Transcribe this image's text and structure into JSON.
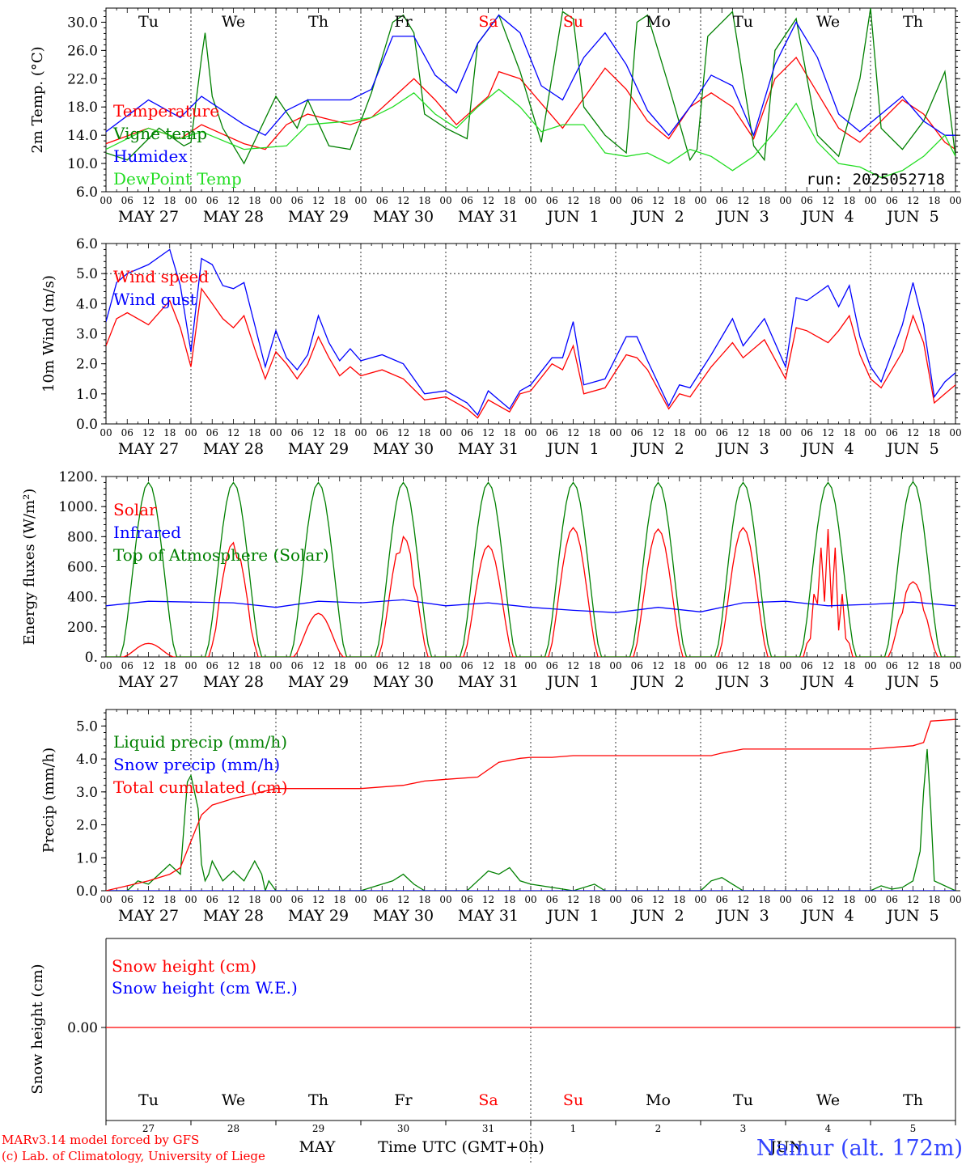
{
  "footer": {
    "model_line": "MARv3.14 model forced by GFS",
    "copyright_line": "(c) Lab. of Climatology, University of Liege",
    "month_label": "MAY",
    "time_axis_label": "Time UTC (GMT+0h)",
    "station": "Namur (alt. 172m)",
    "overlap_label": "JUN"
  },
  "colors": {
    "red": "#ff0000",
    "blue": "#0000ff",
    "green": "#008000",
    "lightgreen": "#22dd22",
    "black": "#000000"
  },
  "chart_data": [
    {
      "type": "line",
      "id": "temperature",
      "ylabel": "2m Temp. (°C)",
      "ylim": [
        6,
        32
      ],
      "yticks": [
        "6.0",
        "10.0",
        "14.0",
        "18.0",
        "22.0",
        "26.0",
        "30.0"
      ],
      "grid": "dashed vertical at 00 UTC",
      "day_names": [
        "Tu",
        "We",
        "Th",
        "Fr",
        "Sa",
        "Su",
        "Mo",
        "Tu",
        "We",
        "Th"
      ],
      "weekend_days": [
        4,
        5
      ],
      "hour_labels": [
        "00",
        "06",
        "12",
        "18"
      ],
      "date_labels": [
        "MAY 27",
        "MAY 28",
        "MAY 29",
        "MAY 30",
        "MAY 31",
        "JUN  1",
        "JUN  2",
        "JUN  3",
        "JUN  4",
        "JUN  5"
      ],
      "annotation": "run: 2025052718",
      "series": [
        {
          "name": "Temperature",
          "color": "#ff0000",
          "x": [
            0,
            12,
            21,
            27,
            39,
            45,
            51,
            57,
            69,
            75,
            87,
            93,
            99,
            108,
            111,
            117,
            123,
            129,
            141,
            147,
            153,
            159,
            165,
            171,
            177,
            183,
            189,
            195,
            201,
            207,
            213,
            219,
            225,
            231,
            237,
            240
          ],
          "y": [
            12.8,
            15.0,
            13.5,
            15.5,
            12.8,
            12.0,
            15.5,
            17.0,
            15.5,
            16.5,
            22.0,
            19.0,
            15.5,
            19.5,
            23.0,
            22.0,
            18.5,
            15.0,
            23.5,
            20.5,
            16.0,
            13.5,
            18.0,
            20.0,
            18.0,
            13.5,
            22.0,
            25.0,
            20.0,
            15.0,
            13.0,
            16.0,
            19.0,
            17.0,
            13.0,
            12.0
          ]
        },
        {
          "name": "Vigne temp",
          "color": "#008000",
          "x": [
            0,
            6,
            15,
            22,
            24,
            27,
            28,
            30,
            33,
            39,
            48,
            54,
            57,
            63,
            69,
            75,
            81,
            84,
            87,
            90,
            96,
            102,
            105,
            111,
            117,
            123,
            129,
            132,
            135,
            141,
            147,
            150,
            153,
            159,
            165,
            167,
            170,
            177,
            183,
            186,
            189,
            195,
            201,
            207,
            213,
            216,
            219,
            225,
            231,
            237,
            240
          ],
          "y": [
            11.5,
            10.5,
            15.0,
            12.5,
            13.0,
            25.0,
            28.5,
            19.5,
            15.0,
            10.0,
            19.5,
            15.0,
            19.0,
            12.5,
            12.0,
            20.0,
            30.0,
            31.0,
            28.5,
            17.0,
            15.0,
            13.5,
            27.0,
            31.0,
            23.0,
            13.0,
            31.5,
            30.5,
            18.0,
            14.0,
            11.5,
            30.0,
            31.0,
            21.0,
            10.5,
            12.0,
            28.0,
            31.5,
            12.5,
            10.5,
            26.0,
            30.5,
            14.0,
            11.0,
            22.0,
            32.0,
            15.0,
            12.0,
            16.0,
            23.0,
            11.0
          ]
        },
        {
          "name": "Humidex",
          "color": "#0000ff",
          "x": [
            0,
            12,
            21,
            27,
            39,
            45,
            51,
            57,
            69,
            75,
            81,
            87,
            93,
            99,
            105,
            111,
            117,
            123,
            129,
            135,
            141,
            147,
            153,
            159,
            165,
            171,
            177,
            183,
            189,
            195,
            201,
            207,
            213,
            219,
            225,
            231,
            237,
            240
          ],
          "y": [
            14.5,
            19.0,
            16.5,
            19.5,
            15.5,
            14.0,
            17.5,
            19.0,
            19.0,
            20.5,
            28.0,
            28.0,
            22.5,
            20.0,
            27.0,
            31.0,
            28.5,
            21.0,
            19.0,
            25.0,
            28.5,
            24.0,
            17.5,
            14.0,
            18.0,
            22.5,
            21.0,
            14.0,
            24.0,
            30.0,
            25.0,
            17.0,
            14.5,
            17.0,
            19.5,
            16.0,
            14.0,
            14.0
          ]
        },
        {
          "name": "DewPoint Temp",
          "color": "#22dd22",
          "x": [
            0,
            12,
            21,
            27,
            39,
            51,
            57,
            69,
            75,
            81,
            87,
            93,
            99,
            105,
            111,
            117,
            123,
            129,
            135,
            141,
            147,
            153,
            159,
            165,
            171,
            177,
            183,
            189,
            195,
            201,
            207,
            213,
            219,
            225,
            231,
            237,
            240
          ],
          "y": [
            12.0,
            15.0,
            13.5,
            14.5,
            12.0,
            12.5,
            15.5,
            16.0,
            16.5,
            18.0,
            20.0,
            17.0,
            15.0,
            18.0,
            20.5,
            18.0,
            14.5,
            15.5,
            15.5,
            11.5,
            11.0,
            11.5,
            10.0,
            12.0,
            11.0,
            9.0,
            11.0,
            14.5,
            18.5,
            13.0,
            10.0,
            9.5,
            8.0,
            9.0,
            11.0,
            14.0,
            11.0
          ]
        }
      ]
    },
    {
      "type": "line",
      "id": "wind",
      "ylabel": "10m Wind (m/s)",
      "ylim": [
        0,
        6
      ],
      "yticks": [
        "0.0",
        "1.0",
        "2.0",
        "3.0",
        "4.0",
        "5.0",
        "6.0"
      ],
      "reference_line": 5.0,
      "hour_labels": [
        "00",
        "06",
        "12",
        "18"
      ],
      "date_labels": [
        "MAY 27",
        "MAY 28",
        "MAY 29",
        "MAY 30",
        "MAY 31",
        "JUN  1",
        "JUN  2",
        "JUN  3",
        "JUN  4",
        "JUN  5"
      ],
      "series": [
        {
          "name": "Wind speed",
          "color": "#ff0000",
          "x": [
            0,
            3,
            6,
            12,
            18,
            21,
            24,
            27,
            30,
            33,
            36,
            39,
            42,
            45,
            48,
            51,
            54,
            57,
            60,
            63,
            66,
            69,
            72,
            78,
            84,
            90,
            96,
            102,
            105,
            108,
            111,
            114,
            117,
            120,
            126,
            129,
            132,
            135,
            141,
            147,
            150,
            153,
            159,
            162,
            165,
            171,
            177,
            180,
            186,
            192,
            195,
            198,
            204,
            207,
            210,
            213,
            216,
            219,
            225,
            228,
            231,
            234,
            237,
            240
          ],
          "y": [
            2.6,
            3.5,
            3.7,
            3.3,
            4.1,
            3.2,
            1.9,
            4.5,
            4.0,
            3.5,
            3.2,
            3.6,
            2.5,
            1.5,
            2.4,
            2.0,
            1.5,
            2.0,
            2.9,
            2.2,
            1.6,
            1.9,
            1.6,
            1.8,
            1.5,
            0.8,
            0.9,
            0.5,
            0.2,
            0.8,
            0.6,
            0.4,
            1.0,
            1.1,
            2.0,
            1.8,
            2.6,
            1.0,
            1.2,
            2.3,
            2.2,
            1.8,
            0.5,
            1.0,
            0.9,
            1.9,
            2.7,
            2.2,
            2.8,
            1.5,
            3.2,
            3.1,
            2.7,
            3.1,
            3.6,
            2.3,
            1.5,
            1.2,
            2.4,
            3.6,
            2.7,
            0.7,
            1.0,
            1.3
          ]
        },
        {
          "name": "Wind gust",
          "color": "#0000ff",
          "x": [
            0,
            3,
            6,
            12,
            18,
            21,
            24,
            27,
            30,
            33,
            36,
            39,
            42,
            45,
            48,
            51,
            54,
            57,
            60,
            63,
            66,
            69,
            72,
            78,
            84,
            90,
            96,
            102,
            105,
            108,
            111,
            114,
            117,
            120,
            126,
            129,
            132,
            135,
            141,
            147,
            150,
            153,
            159,
            162,
            165,
            171,
            177,
            180,
            186,
            192,
            195,
            198,
            204,
            207,
            210,
            213,
            216,
            219,
            225,
            228,
            231,
            234,
            237,
            240
          ],
          "y": [
            3.4,
            4.7,
            5.0,
            5.3,
            5.8,
            4.6,
            2.4,
            5.5,
            5.3,
            4.6,
            4.5,
            4.7,
            3.3,
            1.9,
            3.1,
            2.2,
            1.8,
            2.3,
            3.6,
            2.7,
            2.1,
            2.5,
            2.1,
            2.3,
            2.0,
            1.0,
            1.1,
            0.7,
            0.3,
            1.1,
            0.8,
            0.5,
            1.1,
            1.3,
            2.2,
            2.2,
            3.4,
            1.3,
            1.5,
            2.9,
            2.9,
            2.1,
            0.6,
            1.3,
            1.2,
            2.3,
            3.5,
            2.6,
            3.5,
            1.9,
            4.2,
            4.1,
            4.6,
            3.9,
            4.6,
            2.9,
            1.9,
            1.4,
            3.3,
            4.7,
            3.3,
            0.9,
            1.4,
            1.7
          ]
        }
      ]
    },
    {
      "type": "line",
      "id": "energy",
      "ylabel": "Energy fluxes (W/m²)",
      "ylim": [
        0,
        1200
      ],
      "yticks": [
        "0.",
        "200.",
        "400.",
        "600.",
        "800.",
        "1000.",
        "1200."
      ],
      "hour_labels": [
        "00",
        "06",
        "12",
        "18"
      ],
      "date_labels": [
        "MAY 27",
        "MAY 28",
        "MAY 29",
        "MAY 30",
        "MAY 31",
        "JUN  1",
        "JUN  2",
        "JUN  3",
        "JUN  4",
        "JUN  5"
      ],
      "series": [
        {
          "name": "Solar",
          "color": "#ff0000",
          "daily_peak": [
            90,
            760,
            290,
            800,
            740,
            860,
            850,
            860,
            850,
            500
          ]
        },
        {
          "name": "Infrared",
          "color": "#0000ff",
          "x": [
            0,
            12,
            24,
            36,
            48,
            60,
            72,
            84,
            96,
            108,
            120,
            132,
            144,
            156,
            168,
            180,
            192,
            204,
            216,
            228,
            240
          ],
          "y": [
            340,
            370,
            365,
            360,
            330,
            370,
            360,
            380,
            340,
            360,
            330,
            310,
            295,
            330,
            300,
            360,
            370,
            340,
            350,
            365,
            340
          ]
        },
        {
          "name": "Top of Atmosphere (Solar)",
          "color": "#008000",
          "daily_peak": [
            1160,
            1160,
            1160,
            1160,
            1160,
            1160,
            1160,
            1160,
            1160,
            1165
          ]
        }
      ]
    },
    {
      "type": "line",
      "id": "precip",
      "ylabel": "Precip (mm/h)",
      "ylim": [
        0,
        5.5
      ],
      "yticks": [
        "0.0",
        "1.0",
        "2.0",
        "3.0",
        "4.0",
        "5.0"
      ],
      "hour_labels": [
        "00",
        "06",
        "12",
        "18"
      ],
      "date_labels": [
        "MAY 27",
        "MAY 28",
        "MAY 29",
        "MAY 30",
        "MAY 31",
        "JUN  1",
        "JUN  2",
        "JUN  3",
        "JUN  4",
        "JUN  5"
      ],
      "series": [
        {
          "name": "Liquid precip (mm/h)",
          "color": "#008000",
          "x": [
            0,
            6,
            9,
            12,
            15,
            18,
            21,
            23,
            24,
            26,
            27,
            28,
            29,
            30,
            33,
            36,
            39,
            42,
            44,
            45,
            46,
            48,
            72,
            75,
            81,
            84,
            87,
            90,
            96,
            102,
            105,
            108,
            111,
            114,
            117,
            120,
            126,
            132,
            138,
            141,
            168,
            171,
            174,
            177,
            180,
            216,
            219,
            222,
            225,
            228,
            230,
            231,
            232,
            233,
            234,
            240
          ],
          "y": [
            0,
            0,
            0.3,
            0.2,
            0.5,
            0.8,
            0.5,
            3.3,
            3.5,
            2.5,
            0.8,
            0.3,
            0.5,
            0.9,
            0.3,
            0.6,
            0.3,
            0.9,
            0.5,
            0,
            0.3,
            0,
            0,
            0.1,
            0.3,
            0.5,
            0.2,
            0,
            0,
            0,
            0.3,
            0.6,
            0.5,
            0.7,
            0.3,
            0.2,
            0.1,
            0,
            0.2,
            0,
            0,
            0.3,
            0.4,
            0.2,
            0,
            0,
            0.15,
            0.05,
            0.1,
            0.3,
            1.2,
            3.0,
            4.3,
            2.5,
            0.3,
            0
          ]
        },
        {
          "name": "Snow precip (mm/h)",
          "color": "#0000ff",
          "x": [
            0,
            240
          ],
          "y": [
            0,
            0
          ]
        },
        {
          "name": "Total cumulated (cm)",
          "color": "#ff0000",
          "x": [
            0,
            12,
            18,
            21,
            24,
            27,
            30,
            36,
            42,
            48,
            60,
            72,
            84,
            90,
            96,
            105,
            111,
            117,
            120,
            126,
            132,
            141,
            171,
            174,
            180,
            216,
            228,
            231,
            233,
            240
          ],
          "y": [
            0,
            0.3,
            0.5,
            0.7,
            1.5,
            2.3,
            2.6,
            2.8,
            2.95,
            3.1,
            3.1,
            3.1,
            3.2,
            3.33,
            3.38,
            3.45,
            3.9,
            4.02,
            4.05,
            4.05,
            4.1,
            4.1,
            4.1,
            4.18,
            4.3,
            4.3,
            4.4,
            4.5,
            5.15,
            5.2
          ]
        }
      ]
    },
    {
      "type": "line",
      "id": "snow",
      "ylabel": "Snow height (cm)",
      "ytick": "0.00",
      "day_names": [
        "Tu",
        "We",
        "Th",
        "Fr",
        "Sa",
        "Su",
        "Mo",
        "Tu",
        "We",
        "Th"
      ],
      "weekend_days": [
        4,
        5
      ],
      "day_numbers": [
        "27",
        "28",
        "29",
        "30",
        "31",
        "1",
        "2",
        "3",
        "4",
        "5"
      ],
      "series": [
        {
          "name": "Snow height (cm)",
          "color": "#ff0000",
          "x": [
            0,
            240
          ],
          "y": [
            0,
            0
          ]
        },
        {
          "name": "Snow height (cm W.E.)",
          "color": "#0000ff",
          "x": [
            0,
            240
          ],
          "y": [
            0,
            0
          ]
        }
      ]
    }
  ]
}
